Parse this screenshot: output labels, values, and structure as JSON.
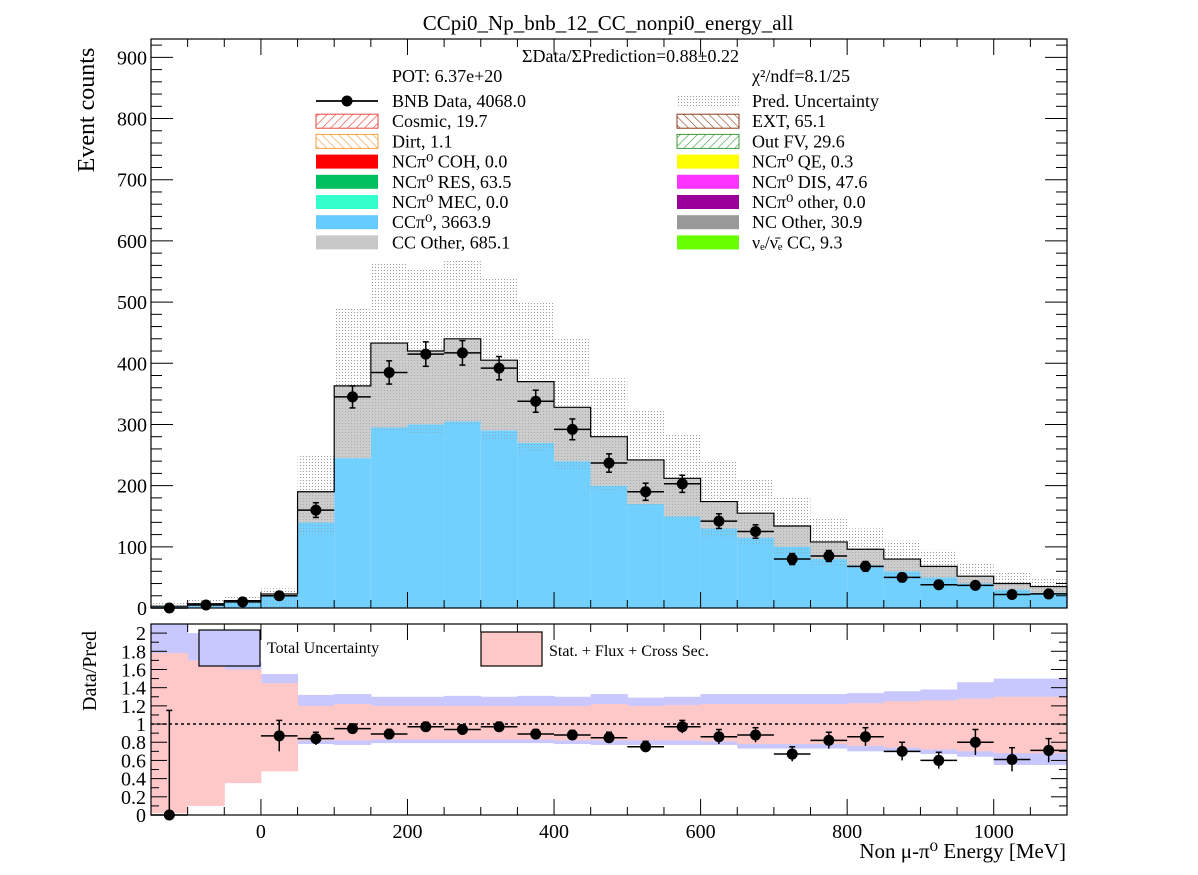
{
  "chart_data": [
    {
      "type": "bar",
      "title": "CCpi0_Np_bnb_12_CC_nonpi0_energy_all",
      "ylabel": "Event counts",
      "ylim": [
        0,
        930
      ],
      "xlim": [
        -150,
        1100
      ],
      "yticks": [
        0,
        100,
        200,
        300,
        400,
        500,
        600,
        700,
        800,
        900
      ],
      "bin_edges": [
        -150,
        -100,
        -50,
        0,
        50,
        100,
        150,
        200,
        250,
        300,
        350,
        400,
        450,
        500,
        550,
        600,
        650,
        700,
        750,
        800,
        850,
        900,
        950,
        1000,
        1050,
        1100
      ],
      "ratio_text": "ΣData/ΣPrediction=0.88±0.22",
      "pot_text": "POT: 6.37e+20",
      "chi2_text": "χ²/ndf=8.1/25",
      "stack_series": [
        {
          "name": "CCπ⁰, 3663.9",
          "color": "#66ccff",
          "values": [
            2,
            5,
            9,
            20,
            140,
            245,
            295,
            300,
            305,
            290,
            270,
            240,
            200,
            170,
            150,
            130,
            115,
            100,
            80,
            70,
            60,
            50,
            40,
            30,
            25
          ]
        },
        {
          "name": "CC Other, 685.1",
          "color": "#c8c8c8",
          "values": [
            1,
            2,
            3,
            3,
            50,
            118,
            138,
            120,
            135,
            115,
            100,
            88,
            80,
            72,
            62,
            44,
            40,
            34,
            28,
            26,
            20,
            18,
            12,
            10,
            10
          ]
        }
      ],
      "total_prediction": [
        3,
        7,
        12,
        23,
        190,
        363,
        433,
        420,
        440,
        405,
        370,
        328,
        280,
        242,
        212,
        174,
        155,
        134,
        108,
        96,
        80,
        68,
        52,
        40,
        35
      ],
      "pred_uncertainty_band": [
        {
          "low": 0,
          "high": 8
        },
        {
          "low": 0,
          "high": 14
        },
        {
          "low": 0,
          "high": 20
        },
        {
          "low": 0,
          "high": 32
        },
        {
          "low": 120,
          "high": 250
        },
        {
          "low": 245,
          "high": 490
        },
        {
          "low": 290,
          "high": 565
        },
        {
          "low": 285,
          "high": 555
        },
        {
          "low": 300,
          "high": 570
        },
        {
          "low": 275,
          "high": 540
        },
        {
          "low": 255,
          "high": 500
        },
        {
          "low": 225,
          "high": 440
        },
        {
          "low": 190,
          "high": 375
        },
        {
          "low": 165,
          "high": 325
        },
        {
          "low": 145,
          "high": 285
        },
        {
          "low": 115,
          "high": 240
        },
        {
          "low": 105,
          "high": 210
        },
        {
          "low": 88,
          "high": 182
        },
        {
          "low": 70,
          "high": 148
        },
        {
          "low": 62,
          "high": 130
        },
        {
          "low": 52,
          "high": 110
        },
        {
          "low": 42,
          "high": 95
        },
        {
          "low": 33,
          "high": 75
        },
        {
          "low": 25,
          "high": 58
        },
        {
          "low": 20,
          "high": 50
        }
      ],
      "data_points": {
        "x": [
          -125,
          -75,
          -25,
          25,
          75,
          125,
          175,
          225,
          275,
          325,
          375,
          425,
          475,
          525,
          575,
          625,
          675,
          725,
          775,
          825,
          875,
          925,
          975,
          1025,
          1075
        ],
        "y": [
          0,
          5,
          10,
          20,
          160,
          345,
          385,
          415,
          417,
          392,
          338,
          292,
          237,
          190,
          203,
          142,
          125,
          80,
          85,
          68,
          50,
          38,
          37,
          22,
          23
        ],
        "err": [
          1,
          2,
          3,
          4,
          12,
          18,
          19,
          20,
          20,
          19,
          18,
          17,
          15,
          14,
          14,
          12,
          11,
          9,
          9,
          8,
          7,
          6,
          6,
          5,
          5
        ]
      },
      "legend": [
        {
          "label": "BNB Data, 4068.0",
          "kind": "marker",
          "color": "#000000"
        },
        {
          "label": "Pred. Uncertainty",
          "kind": "dots",
          "color": "#bbbbbb"
        },
        {
          "label": "Cosmic, 19.7",
          "kind": "hatch-up",
          "color": "#e8453c"
        },
        {
          "label": "EXT, 65.1",
          "kind": "hatch-down",
          "color": "#8b3a1a"
        },
        {
          "label": "Dirt, 1.1",
          "kind": "hatch-down",
          "color": "#f0a040"
        },
        {
          "label": "Out FV, 29.6",
          "kind": "hatch-up",
          "color": "#3a9a3a"
        },
        {
          "label": "NCπ⁰ COH,  0.0",
          "kind": "fill",
          "color": "#ff0000"
        },
        {
          "label": "NCπ⁰ QE,  0.3",
          "kind": "fill",
          "color": "#ffff00"
        },
        {
          "label": "NCπ⁰ RES,  63.5",
          "kind": "fill",
          "color": "#00c060"
        },
        {
          "label": "NCπ⁰ DIS,  47.6",
          "kind": "fill",
          "color": "#ff33ff"
        },
        {
          "label": "NCπ⁰ MEC,  0.0",
          "kind": "fill",
          "color": "#33ffcc"
        },
        {
          "label": "NCπ⁰ other,  0.0",
          "kind": "fill",
          "color": "#990099"
        },
        {
          "label": "CCπ⁰, 3663.9",
          "kind": "fill",
          "color": "#66ccff"
        },
        {
          "label": "NC Other, 30.9",
          "kind": "fill",
          "color": "#999999"
        },
        {
          "label": "CC Other, 685.1",
          "kind": "fill",
          "color": "#c8c8c8"
        },
        {
          "label": "νₑ/ν̄ₑ CC, 9.3",
          "kind": "fill",
          "color": "#66ff00"
        }
      ]
    },
    {
      "type": "scatter",
      "ylabel": "Data/Pred",
      "xlabel": "Non μ-π⁰ Energy [MeV]",
      "xlim": [
        -150,
        1100
      ],
      "ylim": [
        0,
        2.1
      ],
      "yticks": [
        0,
        0.2,
        0.4,
        0.6,
        0.8,
        1,
        1.2,
        1.4,
        1.6,
        1.8,
        2
      ],
      "ytick_labels": [
        "0",
        "0.2",
        "0.4",
        "0.6",
        "0.8",
        "1",
        "1.2",
        "1.4",
        "1.6",
        "1.8",
        "2"
      ],
      "xticks": [
        0,
        200,
        400,
        600,
        800,
        1000
      ],
      "xtick_labels": [
        "0",
        "200",
        "400",
        "600",
        "800",
        "1000"
      ],
      "reference_line": 1,
      "legend": [
        {
          "label": "Total Uncertainty",
          "color": "#c8c8ff"
        },
        {
          "label": "Stat. + Flux + Cross Sec.",
          "color": "#ffc8c8"
        }
      ],
      "total_uncertainty_band": [
        {
          "low": 0.28,
          "high": 2.1
        },
        {
          "low": 0.3,
          "high": 2.0
        },
        {
          "low": 0.62,
          "high": 1.68
        },
        {
          "low": 0.5,
          "high": 1.55
        },
        {
          "low": 0.78,
          "high": 1.32
        },
        {
          "low": 0.77,
          "high": 1.33
        },
        {
          "low": 0.79,
          "high": 1.3
        },
        {
          "low": 0.79,
          "high": 1.3
        },
        {
          "low": 0.79,
          "high": 1.31
        },
        {
          "low": 0.79,
          "high": 1.3
        },
        {
          "low": 0.79,
          "high": 1.31
        },
        {
          "low": 0.78,
          "high": 1.3
        },
        {
          "low": 0.77,
          "high": 1.33
        },
        {
          "low": 0.77,
          "high": 1.29
        },
        {
          "low": 0.77,
          "high": 1.3
        },
        {
          "low": 0.77,
          "high": 1.33
        },
        {
          "low": 0.73,
          "high": 1.33
        },
        {
          "low": 0.73,
          "high": 1.33
        },
        {
          "low": 0.73,
          "high": 1.33
        },
        {
          "low": 0.7,
          "high": 1.34
        },
        {
          "low": 0.69,
          "high": 1.36
        },
        {
          "low": 0.67,
          "high": 1.38
        },
        {
          "low": 0.64,
          "high": 1.46
        },
        {
          "low": 0.55,
          "high": 1.5
        },
        {
          "low": 0.55,
          "high": 1.5
        }
      ],
      "stat_flux_xsec_band": [
        {
          "low": 0.02,
          "high": 1.78
        },
        {
          "low": 0.1,
          "high": 1.7
        },
        {
          "low": 0.35,
          "high": 1.6
        },
        {
          "low": 0.48,
          "high": 1.45
        },
        {
          "low": 0.82,
          "high": 1.2
        },
        {
          "low": 0.82,
          "high": 1.22
        },
        {
          "low": 0.83,
          "high": 1.2
        },
        {
          "low": 0.83,
          "high": 1.2
        },
        {
          "low": 0.83,
          "high": 1.2
        },
        {
          "low": 0.83,
          "high": 1.2
        },
        {
          "low": 0.83,
          "high": 1.2
        },
        {
          "low": 0.82,
          "high": 1.2
        },
        {
          "low": 0.82,
          "high": 1.22
        },
        {
          "low": 0.82,
          "high": 1.2
        },
        {
          "low": 0.82,
          "high": 1.21
        },
        {
          "low": 0.81,
          "high": 1.22
        },
        {
          "low": 0.78,
          "high": 1.22
        },
        {
          "low": 0.78,
          "high": 1.22
        },
        {
          "low": 0.78,
          "high": 1.22
        },
        {
          "low": 0.76,
          "high": 1.23
        },
        {
          "low": 0.74,
          "high": 1.25
        },
        {
          "low": 0.72,
          "high": 1.26
        },
        {
          "low": 0.7,
          "high": 1.28
        },
        {
          "low": 0.68,
          "high": 1.3
        },
        {
          "low": 0.68,
          "high": 1.3
        }
      ],
      "data_points": {
        "x": [
          -125,
          25,
          75,
          125,
          175,
          225,
          275,
          325,
          375,
          425,
          475,
          525,
          575,
          625,
          675,
          725,
          775,
          825,
          875,
          925,
          975,
          1025,
          1075
        ],
        "y": [
          0,
          0.87,
          0.84,
          0.95,
          0.89,
          0.97,
          0.94,
          0.97,
          0.89,
          0.88,
          0.85,
          0.75,
          0.97,
          0.86,
          0.88,
          0.67,
          0.82,
          0.86,
          0.7,
          0.6,
          0.8,
          0.61,
          0.71
        ],
        "err": [
          1.15,
          0.17,
          0.07,
          0.05,
          0.05,
          0.05,
          0.05,
          0.05,
          0.05,
          0.05,
          0.06,
          0.06,
          0.07,
          0.08,
          0.08,
          0.08,
          0.09,
          0.1,
          0.1,
          0.09,
          0.14,
          0.13,
          0.13
        ]
      }
    }
  ]
}
